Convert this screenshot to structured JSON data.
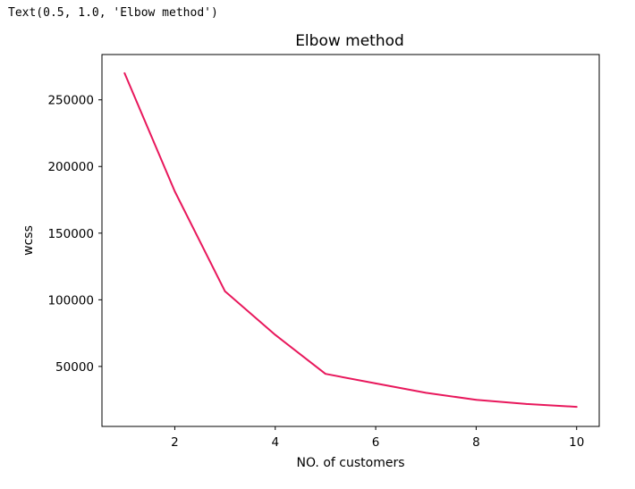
{
  "output": {
    "text": "Text(0.5, 1.0, 'Elbow method')"
  },
  "chart_data": {
    "type": "line",
    "title": "Elbow method",
    "xlabel": "NO. of customers",
    "ylabel": "wcss",
    "x": [
      1,
      2,
      3,
      4,
      5,
      6,
      7,
      8,
      9,
      10
    ],
    "series": [
      {
        "values": [
          269981,
          181363,
          106348,
          73679,
          44448,
          37233,
          30241,
          25012,
          21851,
          19657
        ],
        "color": "#e8185c"
      }
    ],
    "xlim": [
      0.55,
      10.45
    ],
    "ylim": [
      5000,
      284000
    ],
    "xticks": [
      2,
      4,
      6,
      8,
      10
    ],
    "yticks": [
      50000,
      100000,
      150000,
      200000,
      250000
    ],
    "grid": false,
    "legend": "none"
  }
}
